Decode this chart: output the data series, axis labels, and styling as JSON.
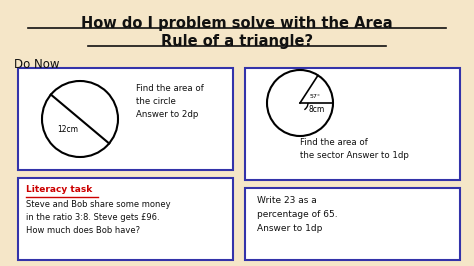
{
  "bg_color": "#f5e6c8",
  "title_line1": "How do I problem solve with the Area",
  "title_line2": "Rule of a triangle?",
  "subtitle": "Do Now",
  "box1_circle_label": "12cm",
  "box1_text": "Find the area of\nthe circle\nAnswer to 2dp",
  "box2_circle_label": "8cm",
  "box2_angle_label": "57°",
  "box2_text": "Find the area of\nthe sector Answer to 1dp",
  "box3_title": "Literacy task",
  "box3_text": "Steve and Bob share some money\nin the ratio 3:8. Steve gets £96.\nHow much does Bob have?",
  "box4_text": "Write 23 as a\npercentage of 65.\nAnswer to 1dp",
  "box_border_color": "#3333aa",
  "literacy_title_color": "#cc0000",
  "text_color": "#111111"
}
